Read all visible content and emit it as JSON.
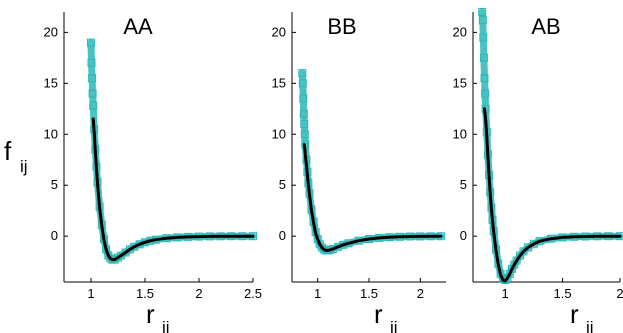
{
  "figure": {
    "ylabel_main": "f",
    "ylabel_sub": "ij",
    "xlabel_main": "r",
    "xlabel_sub": "ij"
  },
  "colors": {
    "target_marker": "#2ab7b7",
    "fit_line": "#000000",
    "axis": "#000000"
  },
  "chart_data": [
    {
      "type": "scatter",
      "title": "AA",
      "xlabel": "r_ij",
      "ylabel": "f_ij",
      "xlim": [
        0.75,
        2.5
      ],
      "ylim": [
        -4.5,
        22
      ],
      "xticks": [
        1,
        1.5,
        2,
        2.5
      ],
      "xtick_labels": [
        "1",
        "1.5",
        "2",
        "2.5"
      ],
      "yticks": [
        0,
        5,
        10,
        15,
        20
      ],
      "ytick_labels": [
        "0",
        "5",
        "10",
        "15",
        "20"
      ],
      "grid": false,
      "series": [
        {
          "marker": "open-square",
          "x": [
            1.0,
            1.005,
            1.01,
            1.015,
            1.02,
            1.03,
            1.04,
            1.05,
            1.06,
            1.08,
            1.1,
            1.12,
            1.14,
            1.16,
            1.18,
            1.2,
            1.22,
            1.25,
            1.28,
            1.32,
            1.36,
            1.4,
            1.45,
            1.5,
            1.55,
            1.6,
            1.7,
            1.8,
            1.9,
            2.0,
            2.1,
            2.2,
            2.3,
            2.4,
            2.5
          ],
          "y": [
            19.0,
            17.0,
            15.5,
            14.0,
            12.8,
            10.5,
            8.5,
            6.8,
            5.3,
            2.9,
            1.1,
            -0.3,
            -1.3,
            -1.9,
            -2.2,
            -2.3,
            -2.3,
            -2.1,
            -1.9,
            -1.6,
            -1.3,
            -1.05,
            -0.8,
            -0.6,
            -0.45,
            -0.35,
            -0.2,
            -0.12,
            -0.07,
            -0.04,
            -0.02,
            -0.01,
            0.0,
            0.0,
            0.0
          ]
        },
        {
          "marker": "line",
          "x": [
            1.02,
            1.03,
            1.04,
            1.05,
            1.06,
            1.08,
            1.1,
            1.12,
            1.14,
            1.16,
            1.18,
            1.2,
            1.22,
            1.25,
            1.28,
            1.32,
            1.36,
            1.4,
            1.45,
            1.5,
            1.55,
            1.6,
            1.7,
            1.8,
            1.9,
            2.0,
            2.1,
            2.2,
            2.3,
            2.4,
            2.5
          ],
          "y": [
            11.5,
            10.2,
            8.4,
            6.7,
            5.2,
            2.8,
            1.0,
            -0.4,
            -1.3,
            -1.9,
            -2.2,
            -2.3,
            -2.3,
            -2.1,
            -1.9,
            -1.6,
            -1.3,
            -1.05,
            -0.8,
            -0.6,
            -0.45,
            -0.35,
            -0.2,
            -0.12,
            -0.07,
            -0.04,
            -0.02,
            -0.01,
            0.0,
            0.0,
            0.0
          ]
        }
      ]
    },
    {
      "type": "scatter",
      "title": "BB",
      "xlabel": "r_ij",
      "ylabel": "f_ij",
      "xlim": [
        0.75,
        2.25
      ],
      "ylim": [
        -4.5,
        22
      ],
      "xticks": [
        1,
        1.5,
        2
      ],
      "xtick_labels": [
        "1",
        "1.5",
        "2"
      ],
      "yticks": [
        0,
        5,
        10,
        15,
        20
      ],
      "ytick_labels": [
        "0",
        "5",
        "10",
        "15",
        "20"
      ],
      "grid": false,
      "series": [
        {
          "marker": "open-square",
          "x": [
            0.85,
            0.855,
            0.86,
            0.865,
            0.87,
            0.875,
            0.88,
            0.89,
            0.9,
            0.91,
            0.92,
            0.94,
            0.96,
            0.98,
            1.0,
            1.02,
            1.04,
            1.06,
            1.08,
            1.1,
            1.12,
            1.15,
            1.2,
            1.25,
            1.3,
            1.4,
            1.5,
            1.6,
            1.7,
            1.8,
            1.9,
            2.0,
            2.1,
            2.2
          ],
          "y": [
            16.0,
            15.0,
            13.5,
            12.0,
            11.0,
            10.0,
            9.0,
            7.5,
            6.3,
            5.2,
            4.2,
            2.6,
            1.4,
            0.4,
            -0.3,
            -0.8,
            -1.1,
            -1.3,
            -1.4,
            -1.4,
            -1.35,
            -1.25,
            -1.05,
            -0.85,
            -0.7,
            -0.45,
            -0.28,
            -0.17,
            -0.1,
            -0.06,
            -0.03,
            -0.02,
            -0.01,
            0.0
          ]
        },
        {
          "marker": "line",
          "x": [
            0.87,
            0.875,
            0.88,
            0.89,
            0.9,
            0.91,
            0.92,
            0.94,
            0.96,
            0.98,
            1.0,
            1.02,
            1.04,
            1.06,
            1.08,
            1.1,
            1.12,
            1.15,
            1.2,
            1.25,
            1.3,
            1.4,
            1.5,
            1.6,
            1.7,
            1.8,
            1.9,
            2.0,
            2.1,
            2.2
          ],
          "y": [
            9.0,
            8.6,
            8.0,
            7.0,
            6.0,
            5.0,
            4.1,
            2.5,
            1.3,
            0.3,
            -0.3,
            -0.8,
            -1.1,
            -1.3,
            -1.4,
            -1.4,
            -1.35,
            -1.25,
            -1.05,
            -0.85,
            -0.7,
            -0.45,
            -0.28,
            -0.17,
            -0.1,
            -0.06,
            -0.03,
            -0.02,
            -0.01,
            0.0
          ]
        }
      ]
    },
    {
      "type": "scatter",
      "title": "AB",
      "xlabel": "r_ij",
      "ylabel": "f_ij",
      "xlim": [
        0.72,
        2.0
      ],
      "ylim": [
        -4.5,
        22
      ],
      "xticks": [
        1,
        1.5,
        2
      ],
      "xtick_labels": [
        "1",
        "1.5",
        "2"
      ],
      "yticks": [
        0,
        5,
        10,
        15,
        20
      ],
      "ytick_labels": [
        "0",
        "5",
        "10",
        "15",
        "20"
      ],
      "grid": false,
      "series": [
        {
          "marker": "open-square",
          "x": [
            0.8,
            0.805,
            0.81,
            0.815,
            0.82,
            0.825,
            0.83,
            0.84,
            0.85,
            0.86,
            0.87,
            0.88,
            0.89,
            0.9,
            0.92,
            0.94,
            0.96,
            0.98,
            1.0,
            1.02,
            1.04,
            1.06,
            1.08,
            1.1,
            1.13,
            1.16,
            1.2,
            1.25,
            1.3,
            1.4,
            1.5,
            1.6,
            1.7,
            1.8,
            1.9,
            2.0
          ],
          "y": [
            22.0,
            21.2,
            19.5,
            17.5,
            15.5,
            14.0,
            12.5,
            10.2,
            8.0,
            6.0,
            4.3,
            2.8,
            1.6,
            0.5,
            -1.3,
            -2.7,
            -3.7,
            -4.2,
            -4.3,
            -4.1,
            -3.7,
            -3.2,
            -2.8,
            -2.4,
            -1.9,
            -1.5,
            -1.1,
            -0.75,
            -0.5,
            -0.25,
            -0.12,
            -0.06,
            -0.03,
            -0.01,
            0.0,
            0.0
          ]
        },
        {
          "marker": "line",
          "x": [
            0.82,
            0.825,
            0.83,
            0.84,
            0.85,
            0.86,
            0.87,
            0.88,
            0.89,
            0.9,
            0.92,
            0.94,
            0.96,
            0.98,
            1.0,
            1.02,
            1.04,
            1.06,
            1.08,
            1.1,
            1.13,
            1.16,
            1.2,
            1.25,
            1.3,
            1.4,
            1.5,
            1.6,
            1.7,
            1.8,
            1.9,
            2.0
          ],
          "y": [
            12.5,
            12.0,
            11.5,
            9.8,
            7.8,
            5.9,
            4.2,
            2.7,
            1.5,
            0.4,
            -1.4,
            -2.8,
            -3.8,
            -4.3,
            -4.4,
            -4.1,
            -3.7,
            -3.2,
            -2.8,
            -2.4,
            -1.9,
            -1.5,
            -1.1,
            -0.75,
            -0.5,
            -0.25,
            -0.12,
            -0.06,
            -0.03,
            -0.01,
            0.0,
            0.0
          ]
        }
      ]
    }
  ]
}
